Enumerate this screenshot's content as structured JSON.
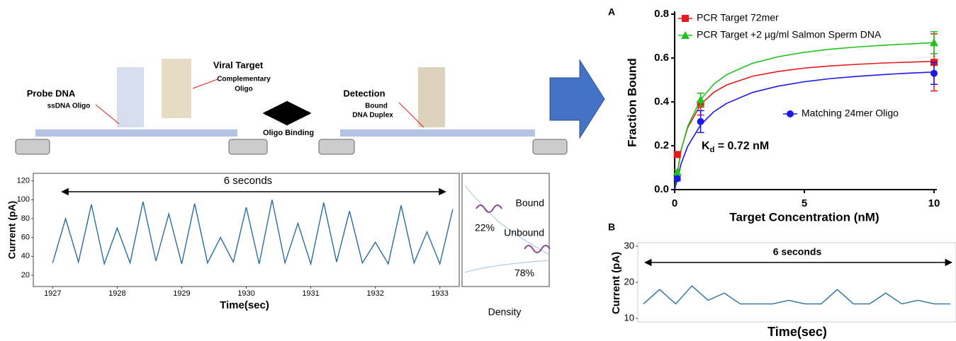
{
  "diagram": {
    "probe_title": "Probe DNA",
    "probe_sub": "ssDNA Oligo",
    "target_title": "Viral Target",
    "target_sub1": "Complementary",
    "target_sub2": "Oligo",
    "binding": "Oligo Binding",
    "detection_title": "Detection",
    "detection_sub1": "Bound",
    "detection_sub2": "DNA Duplex"
  },
  "chart_data": [
    {
      "type": "line",
      "ylabel": "Current (pA)",
      "xlabel": "Time(sec)",
      "annotation": "6 seconds",
      "density": {
        "title": "Density",
        "bound": "Bound",
        "bound_pct": "22%",
        "unbound": "Unbound",
        "unbound_pct": "78%"
      },
      "xlim": [
        1926.7,
        1933.3
      ],
      "xticks": [
        1927,
        1928,
        1929,
        1930,
        1931,
        1932,
        1933
      ],
      "ylim": [
        8,
        128
      ],
      "yticks": [
        20,
        40,
        60,
        80,
        100,
        120
      ],
      "color": "#2b6e9c",
      "x": [
        1927,
        1927.2,
        1927.4,
        1927.6,
        1927.8,
        1928,
        1928.2,
        1928.4,
        1928.6,
        1928.8,
        1929,
        1929.2,
        1929.4,
        1929.6,
        1929.8,
        1930,
        1930.2,
        1930.4,
        1930.6,
        1930.8,
        1931,
        1931.2,
        1931.4,
        1931.6,
        1931.8,
        1932,
        1932.2,
        1932.4,
        1932.6,
        1932.8,
        1933,
        1933.2
      ],
      "values": [
        33,
        80,
        34,
        95,
        32,
        70,
        33,
        98,
        35,
        85,
        32,
        96,
        33,
        60,
        34,
        92,
        32,
        100,
        33,
        75,
        32,
        97,
        34,
        88,
        33,
        55,
        32,
        94,
        33,
        66,
        32,
        90
      ]
    },
    {
      "type": "scatter",
      "panel": "A",
      "ylabel": "Fraction Bound",
      "xlabel": "Target Concentration (nM)",
      "kd_label": {
        "main": "K",
        "sub": "d",
        "rest": " = 0.72 nM"
      },
      "xlim": [
        0,
        10
      ],
      "xticks": [
        0,
        5,
        10
      ],
      "ylim": [
        0,
        0.8
      ],
      "yticks": [
        {
          "value": 0,
          "label": "0.0"
        },
        0.2,
        0.4,
        0.6,
        0.8
      ],
      "curve_x": [
        0,
        0.25,
        0.5,
        1,
        1.5,
        2,
        3,
        4,
        5,
        6,
        7,
        8,
        9,
        10
      ],
      "series": [
        {
          "name": "PCR Target 72mer",
          "color": "#e8191c",
          "marker": "square",
          "x": [
            0.1,
            1,
            10
          ],
          "values": [
            0.16,
            0.39,
            0.58
          ],
          "errors": [
            0.01,
            0.05,
            0.13
          ],
          "curve": [
            0,
            0.182,
            0.282,
            0.388,
            0.443,
            0.477,
            0.517,
            0.539,
            0.554,
            0.564,
            0.571,
            0.577,
            0.581,
            0.585
          ]
        },
        {
          "name": "PCR Target +2 µg/ml Salmon Sperm DNA",
          "color": "#22c21e",
          "marker": "triangle",
          "x": [
            0.1,
            1,
            10
          ],
          "values": [
            0.08,
            0.41,
            0.67
          ],
          "errors": [
            0.01,
            0.03,
            0.05
          ],
          "curve": [
            0,
            0.18,
            0.288,
            0.411,
            0.48,
            0.524,
            0.576,
            0.606,
            0.626,
            0.64,
            0.65,
            0.658,
            0.664,
            0.67
          ]
        },
        {
          "name": "Matching 24mer Oligo",
          "color": "#1a1ae6",
          "marker": "circle",
          "x": [
            0.1,
            1,
            10
          ],
          "values": [
            0.05,
            0.31,
            0.53
          ],
          "errors": [
            0.01,
            0.05,
            0.05
          ],
          "curve": [
            0,
            0.118,
            0.197,
            0.295,
            0.354,
            0.393,
            0.443,
            0.472,
            0.492,
            0.506,
            0.516,
            0.524,
            0.531,
            0.536
          ]
        }
      ]
    },
    {
      "type": "line",
      "panel": "B",
      "ylabel": "Current (pA)",
      "xlabel": "Time(sec)",
      "annotation": "6 seconds",
      "ylim": [
        9,
        31
      ],
      "yticks": [
        10,
        20,
        30
      ],
      "color": "#2b6e9c",
      "values": [
        14,
        18,
        14,
        19,
        15,
        17,
        14,
        14,
        14,
        15,
        14,
        14,
        18,
        14,
        14,
        17,
        14,
        15,
        14,
        14
      ]
    }
  ]
}
